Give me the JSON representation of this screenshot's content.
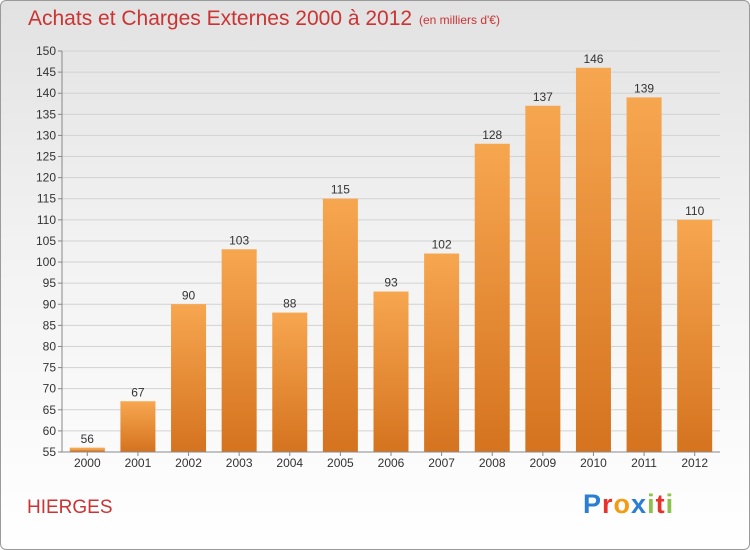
{
  "header": {
    "title": "Achats et Charges Externes 2000 à 2012",
    "subtitle": "(en milliers d'€)"
  },
  "footer": {
    "city": "HIERGES",
    "logo": {
      "letters": [
        "P",
        "r",
        "o",
        "x",
        "i",
        "t",
        "i"
      ]
    }
  },
  "colors": {
    "accent": "#cc3333",
    "bar_top": "#f7a650",
    "bar_bottom": "#d5731f",
    "logo": [
      "#2a7fd4",
      "#e8322b",
      "#f39c12",
      "#2a7fd4",
      "#8bc34a",
      "#e8322b",
      "#8bc34a"
    ]
  },
  "chart_data": {
    "type": "bar",
    "title": "Achats et Charges Externes 2000 à 2012",
    "subtitle": "(en milliers d'€)",
    "xlabel": "",
    "ylabel": "",
    "categories": [
      "2000",
      "2001",
      "2002",
      "2003",
      "2004",
      "2005",
      "2006",
      "2007",
      "2008",
      "2009",
      "2010",
      "2011",
      "2012"
    ],
    "values": [
      56,
      67,
      90,
      103,
      88,
      115,
      93,
      102,
      128,
      137,
      146,
      139,
      110
    ],
    "data_labels": [
      "56",
      "67",
      "90",
      "103",
      "88",
      "115",
      "93",
      "102",
      "128",
      "137",
      "146",
      "139",
      "110"
    ],
    "ylim": [
      55,
      150
    ],
    "yticks": [
      55,
      60,
      65,
      70,
      75,
      80,
      85,
      90,
      95,
      100,
      105,
      110,
      115,
      120,
      125,
      130,
      135,
      140,
      145,
      150
    ],
    "grid": true,
    "legend": "none"
  }
}
